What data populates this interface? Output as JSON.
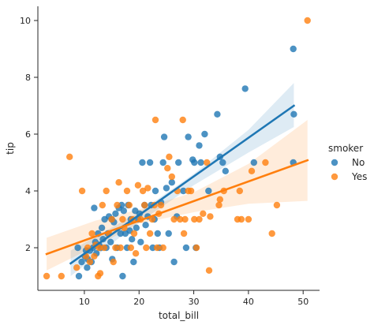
{
  "chart_data": {
    "type": "scatter",
    "xlabel": "total_bill",
    "ylabel": "tip",
    "xlim": [
      1.5,
      53.0
    ],
    "ylim": [
      0.5,
      10.5
    ],
    "x_ticks": [
      10,
      20,
      30,
      40,
      50
    ],
    "y_ticks": [
      2,
      4,
      6,
      8,
      10
    ],
    "grid": false,
    "legend": {
      "title": "smoker",
      "placement": "right"
    },
    "series": [
      {
        "name": "No",
        "color": "#1f77b4",
        "fit_line": {
          "x": [
            7.5,
            48.3
          ],
          "y": [
            1.45,
            7.0
          ]
        },
        "ci_upper": {
          "x": [
            7.5,
            20,
            30,
            40,
            48.3
          ],
          "y": [
            1.9,
            3.25,
            4.6,
            6.15,
            7.8
          ]
        },
        "ci_lower": {
          "x": [
            7.5,
            20,
            30,
            40,
            48.3
          ],
          "y": [
            1.0,
            2.9,
            4.2,
            5.35,
            6.25
          ]
        },
        "points": [
          [
            8.8,
            2.0
          ],
          [
            9.0,
            1.0
          ],
          [
            9.5,
            1.5
          ],
          [
            10.1,
            1.7
          ],
          [
            10.3,
            1.9
          ],
          [
            10.5,
            1.3
          ],
          [
            10.6,
            1.6
          ],
          [
            11.0,
            1.9
          ],
          [
            11.3,
            1.5
          ],
          [
            11.6,
            2.0
          ],
          [
            11.8,
            3.4
          ],
          [
            12.0,
            2.2
          ],
          [
            12.2,
            1.8
          ],
          [
            12.5,
            2.5
          ],
          [
            12.7,
            2.1
          ],
          [
            13.0,
            2.0
          ],
          [
            13.2,
            2.7
          ],
          [
            13.4,
            2.3
          ],
          [
            13.7,
            3.0
          ],
          [
            14.0,
            2.0
          ],
          [
            14.3,
            2.5
          ],
          [
            14.5,
            3.1
          ],
          [
            14.8,
            2.2
          ],
          [
            15.0,
            3.0
          ],
          [
            15.1,
            1.6
          ],
          [
            15.4,
            2.9
          ],
          [
            15.7,
            3.2
          ],
          [
            16.0,
            2.0
          ],
          [
            16.3,
            3.4
          ],
          [
            16.6,
            2.5
          ],
          [
            16.8,
            3.5
          ],
          [
            17.0,
            1.0
          ],
          [
            17.2,
            3.3
          ],
          [
            17.5,
            2.5
          ],
          [
            17.8,
            2.0
          ],
          [
            18.0,
            3.5
          ],
          [
            18.3,
            2.6
          ],
          [
            18.5,
            3.0
          ],
          [
            18.7,
            2.3
          ],
          [
            19.0,
            1.5
          ],
          [
            19.3,
            3.3
          ],
          [
            19.5,
            2.7
          ],
          [
            19.8,
            3.0
          ],
          [
            20.1,
            3.2
          ],
          [
            20.3,
            2.2
          ],
          [
            20.6,
            5.0
          ],
          [
            21.0,
            3.5
          ],
          [
            21.2,
            2.8
          ],
          [
            21.6,
            3.1
          ],
          [
            22.0,
            5.0
          ],
          [
            22.2,
            3.5
          ],
          [
            22.5,
            2.0
          ],
          [
            22.8,
            3.0
          ],
          [
            23.0,
            4.0
          ],
          [
            23.4,
            2.5
          ],
          [
            23.7,
            2.0
          ],
          [
            24.0,
            3.6
          ],
          [
            24.4,
            5.0
          ],
          [
            24.6,
            5.9
          ],
          [
            25.0,
            4.1
          ],
          [
            25.4,
            2.5
          ],
          [
            26.0,
            4.3
          ],
          [
            26.4,
            1.5
          ],
          [
            26.9,
            3.1
          ],
          [
            27.2,
            5.0
          ],
          [
            28.1,
            4.0
          ],
          [
            28.6,
            2.0
          ],
          [
            29.0,
            5.9
          ],
          [
            29.8,
            5.1
          ],
          [
            30.1,
            5.0
          ],
          [
            30.4,
            2.0
          ],
          [
            31.0,
            5.6
          ],
          [
            31.3,
            5.0
          ],
          [
            32.0,
            6.0
          ],
          [
            32.7,
            4.0
          ],
          [
            34.3,
            6.7
          ],
          [
            34.8,
            5.2
          ],
          [
            35.3,
            5.0
          ],
          [
            35.8,
            4.7
          ],
          [
            39.4,
            7.6
          ],
          [
            41.0,
            5.0
          ],
          [
            48.2,
            9.0
          ],
          [
            48.3,
            6.7
          ],
          [
            48.2,
            5.0
          ]
        ]
      },
      {
        "name": "Yes",
        "color": "#ff7f0e",
        "fit_line": {
          "x": [
            3.1,
            50.8
          ],
          "y": [
            1.78,
            5.08
          ]
        },
        "ci_upper": {
          "x": [
            3.1,
            12,
            20,
            30,
            40,
            50.8
          ],
          "y": [
            2.35,
            2.95,
            3.35,
            3.95,
            4.95,
            6.5
          ]
        },
        "ci_lower": {
          "x": [
            3.1,
            12,
            20,
            30,
            40,
            50.8
          ],
          "y": [
            1.2,
            2.05,
            2.85,
            3.25,
            3.55,
            3.65
          ]
        },
        "points": [
          [
            3.1,
            1.0
          ],
          [
            5.8,
            1.0
          ],
          [
            7.3,
            5.2
          ],
          [
            8.6,
            1.3
          ],
          [
            9.6,
            4.0
          ],
          [
            10.3,
            1.7
          ],
          [
            10.6,
            2.0
          ],
          [
            11.0,
            1.5
          ],
          [
            11.4,
            2.5
          ],
          [
            11.8,
            1.7
          ],
          [
            12.1,
            2.1
          ],
          [
            12.5,
            1.0
          ],
          [
            12.7,
            2.0
          ],
          [
            12.9,
            1.1
          ],
          [
            13.3,
            3.5
          ],
          [
            13.6,
            2.0
          ],
          [
            14.0,
            4.0
          ],
          [
            14.5,
            2.5
          ],
          [
            15.0,
            3.0
          ],
          [
            15.3,
            1.5
          ],
          [
            15.7,
            2.0
          ],
          [
            16.0,
            3.5
          ],
          [
            16.3,
            4.3
          ],
          [
            16.6,
            2.0
          ],
          [
            17.0,
            3.0
          ],
          [
            17.3,
            2.7
          ],
          [
            17.8,
            4.0
          ],
          [
            18.2,
            3.5
          ],
          [
            18.5,
            2.0
          ],
          [
            18.8,
            3.0
          ],
          [
            19.1,
            2.5
          ],
          [
            19.4,
            1.8
          ],
          [
            19.8,
            4.2
          ],
          [
            20.3,
            3.0
          ],
          [
            20.7,
            4.0
          ],
          [
            21.0,
            3.5
          ],
          [
            21.3,
            2.0
          ],
          [
            21.6,
            4.1
          ],
          [
            22.0,
            2.5
          ],
          [
            22.4,
            3.0
          ],
          [
            22.8,
            3.5
          ],
          [
            23.0,
            6.5
          ],
          [
            23.3,
            2.0
          ],
          [
            23.6,
            3.2
          ],
          [
            24.0,
            3.5
          ],
          [
            24.4,
            2.0
          ],
          [
            25.2,
            4.8
          ],
          [
            25.5,
            5.2
          ],
          [
            26.0,
            4.5
          ],
          [
            26.4,
            3.0
          ],
          [
            27.0,
            4.0
          ],
          [
            27.5,
            3.0
          ],
          [
            28.0,
            6.5
          ],
          [
            28.4,
            3.0
          ],
          [
            28.2,
            2.5
          ],
          [
            29.0,
            4.0
          ],
          [
            29.5,
            4.0
          ],
          [
            30.1,
            3.0
          ],
          [
            30.5,
            2.0
          ],
          [
            31.0,
            3.0
          ],
          [
            31.7,
            3.2
          ],
          [
            32.4,
            5.0
          ],
          [
            32.8,
            1.2
          ],
          [
            33.0,
            3.1
          ],
          [
            34.6,
            3.5
          ],
          [
            34.8,
            3.7
          ],
          [
            35.5,
            4.0
          ],
          [
            38.0,
            3.0
          ],
          [
            38.4,
            4.0
          ],
          [
            38.7,
            3.0
          ],
          [
            40.0,
            3.0
          ],
          [
            40.6,
            4.7
          ],
          [
            43.1,
            5.0
          ],
          [
            44.3,
            2.5
          ],
          [
            45.2,
            3.5
          ],
          [
            50.8,
            10.0
          ]
        ]
      }
    ]
  }
}
